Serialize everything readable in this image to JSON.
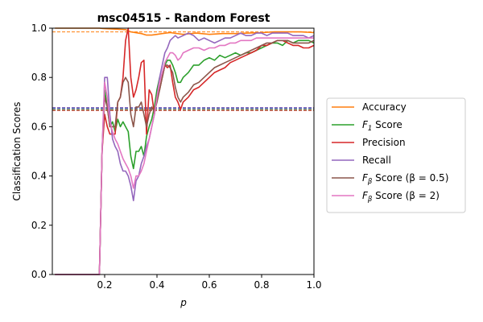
{
  "chart_data": {
    "type": "line",
    "title": "msc04515 - Random Forest",
    "xlabel": "p",
    "ylabel": "Classification Scores",
    "xlim": [
      0.0,
      1.0
    ],
    "ylim": [
      0.0,
      1.0
    ],
    "x_ticks": [
      "0.2",
      "0.4",
      "0.6",
      "0.8",
      "1.0"
    ],
    "y_ticks": [
      "0.0",
      "0.2",
      "0.4",
      "0.6",
      "0.8",
      "1.0"
    ],
    "grid": false,
    "legend_position": "right-outside",
    "colors": {
      "accuracy": "#ff7f0e",
      "f1": "#2ca02c",
      "precision": "#d62728",
      "recall": "#9467bd",
      "f05": "#8c564b",
      "f2": "#e377c2",
      "baseline_blue": "#1f77b4"
    },
    "reference_lines": [
      {
        "series": "accuracy",
        "y": 0.985,
        "style": "dashed"
      },
      {
        "series": "recall",
        "y": 0.678,
        "style": "dashed"
      },
      {
        "series": "baseline_blue",
        "y": 0.675,
        "style": "dashed"
      },
      {
        "series": "f2",
        "y": 0.672,
        "style": "dashed"
      },
      {
        "series": "f1",
        "y": 0.669,
        "style": "dashed"
      },
      {
        "series": "precision",
        "y": 0.666,
        "style": "dashed"
      }
    ],
    "series": [
      {
        "key": "accuracy",
        "name": "Accuracy",
        "x": [
          0.01,
          0.1,
          0.18,
          0.2,
          0.24,
          0.28,
          0.3,
          0.34,
          0.36,
          0.38,
          0.4,
          0.42,
          0.45,
          0.5,
          0.55,
          0.6,
          0.65,
          0.7,
          0.75,
          0.8,
          0.85,
          0.9,
          0.95,
          1.0
        ],
        "y": [
          1.0,
          1.0,
          1.0,
          0.998,
          0.996,
          0.994,
          0.985,
          0.978,
          0.972,
          0.972,
          0.975,
          0.978,
          0.982,
          0.975,
          0.98,
          0.975,
          0.978,
          0.978,
          0.98,
          0.982,
          0.985,
          0.985,
          0.985,
          0.982
        ]
      },
      {
        "key": "f1",
        "name": "F1 Score",
        "x": [
          0.01,
          0.17,
          0.18,
          0.19,
          0.2,
          0.21,
          0.22,
          0.23,
          0.24,
          0.25,
          0.26,
          0.27,
          0.28,
          0.29,
          0.3,
          0.31,
          0.32,
          0.33,
          0.34,
          0.35,
          0.36,
          0.37,
          0.38,
          0.39,
          0.4,
          0.41,
          0.42,
          0.43,
          0.44,
          0.45,
          0.46,
          0.47,
          0.48,
          0.49,
          0.5,
          0.52,
          0.54,
          0.56,
          0.58,
          0.6,
          0.62,
          0.64,
          0.66,
          0.68,
          0.7,
          0.72,
          0.74,
          0.76,
          0.78,
          0.8,
          0.82,
          0.84,
          0.86,
          0.88,
          0.9,
          0.92,
          0.94,
          0.96,
          0.98,
          1.0
        ],
        "y": [
          0.0,
          0.0,
          0.0,
          0.5,
          0.75,
          0.68,
          0.6,
          0.62,
          0.58,
          0.63,
          0.6,
          0.62,
          0.6,
          0.58,
          0.48,
          0.43,
          0.5,
          0.5,
          0.52,
          0.48,
          0.56,
          0.6,
          0.63,
          0.68,
          0.75,
          0.8,
          0.8,
          0.85,
          0.87,
          0.87,
          0.85,
          0.82,
          0.78,
          0.78,
          0.8,
          0.82,
          0.85,
          0.85,
          0.87,
          0.88,
          0.87,
          0.89,
          0.88,
          0.89,
          0.9,
          0.89,
          0.9,
          0.9,
          0.91,
          0.92,
          0.93,
          0.94,
          0.94,
          0.93,
          0.95,
          0.94,
          0.95,
          0.95,
          0.95,
          0.94
        ]
      },
      {
        "key": "precision",
        "name": "Precision",
        "x": [
          0.01,
          0.17,
          0.18,
          0.19,
          0.2,
          0.21,
          0.22,
          0.23,
          0.24,
          0.25,
          0.26,
          0.27,
          0.28,
          0.29,
          0.3,
          0.31,
          0.32,
          0.33,
          0.34,
          0.35,
          0.36,
          0.37,
          0.38,
          0.39,
          0.4,
          0.41,
          0.42,
          0.43,
          0.44,
          0.45,
          0.46,
          0.47,
          0.48,
          0.49,
          0.5,
          0.52,
          0.54,
          0.56,
          0.58,
          0.6,
          0.62,
          0.64,
          0.66,
          0.68,
          0.7,
          0.72,
          0.74,
          0.76,
          0.78,
          0.8,
          0.82,
          0.84,
          0.86,
          0.88,
          0.9,
          0.92,
          0.94,
          0.96,
          0.98,
          1.0
        ],
        "y": [
          0.0,
          0.0,
          0.0,
          0.5,
          0.65,
          0.6,
          0.57,
          0.57,
          0.57,
          0.7,
          0.72,
          0.8,
          0.95,
          1.0,
          0.8,
          0.72,
          0.75,
          0.8,
          0.86,
          0.87,
          0.57,
          0.75,
          0.73,
          0.65,
          0.72,
          0.75,
          0.8,
          0.85,
          0.84,
          0.85,
          0.78,
          0.72,
          0.7,
          0.67,
          0.7,
          0.72,
          0.75,
          0.76,
          0.78,
          0.8,
          0.82,
          0.83,
          0.84,
          0.86,
          0.87,
          0.88,
          0.89,
          0.9,
          0.91,
          0.93,
          0.93,
          0.94,
          0.95,
          0.95,
          0.94,
          0.93,
          0.93,
          0.92,
          0.92,
          0.93
        ]
      },
      {
        "key": "recall",
        "name": "Recall",
        "x": [
          0.01,
          0.17,
          0.18,
          0.19,
          0.2,
          0.21,
          0.22,
          0.23,
          0.24,
          0.25,
          0.26,
          0.27,
          0.28,
          0.29,
          0.3,
          0.31,
          0.32,
          0.33,
          0.34,
          0.35,
          0.36,
          0.37,
          0.38,
          0.39,
          0.4,
          0.41,
          0.42,
          0.43,
          0.44,
          0.45,
          0.46,
          0.47,
          0.48,
          0.5,
          0.52,
          0.54,
          0.56,
          0.58,
          0.6,
          0.62,
          0.64,
          0.66,
          0.68,
          0.7,
          0.72,
          0.74,
          0.76,
          0.78,
          0.8,
          0.82,
          0.84,
          0.86,
          0.88,
          0.9,
          0.92,
          0.94,
          0.96,
          0.98,
          1.0
        ],
        "y": [
          0.0,
          0.0,
          0.0,
          0.5,
          0.8,
          0.8,
          0.65,
          0.55,
          0.52,
          0.5,
          0.45,
          0.42,
          0.42,
          0.4,
          0.36,
          0.3,
          0.38,
          0.4,
          0.45,
          0.48,
          0.52,
          0.55,
          0.6,
          0.65,
          0.72,
          0.8,
          0.85,
          0.9,
          0.92,
          0.95,
          0.96,
          0.97,
          0.96,
          0.97,
          0.98,
          0.97,
          0.95,
          0.96,
          0.95,
          0.94,
          0.95,
          0.96,
          0.96,
          0.97,
          0.98,
          0.97,
          0.97,
          0.98,
          0.98,
          0.97,
          0.98,
          0.98,
          0.98,
          0.98,
          0.97,
          0.97,
          0.97,
          0.96,
          0.97
        ]
      },
      {
        "key": "f05",
        "name": "Fβ Score (β = 0.5)",
        "x": [
          0.01,
          0.17,
          0.18,
          0.19,
          0.2,
          0.21,
          0.22,
          0.23,
          0.24,
          0.25,
          0.26,
          0.27,
          0.28,
          0.29,
          0.3,
          0.31,
          0.32,
          0.33,
          0.34,
          0.35,
          0.36,
          0.37,
          0.38,
          0.39,
          0.4,
          0.41,
          0.42,
          0.43,
          0.44,
          0.45,
          0.46,
          0.47,
          0.48,
          0.49,
          0.5,
          0.52,
          0.54,
          0.56,
          0.58,
          0.6,
          0.62,
          0.64,
          0.66,
          0.68,
          0.7,
          0.72,
          0.74,
          0.76,
          0.78,
          0.8,
          0.82,
          0.84,
          0.86,
          0.88,
          0.9,
          0.92,
          0.94,
          0.96,
          0.98,
          1.0
        ],
        "y": [
          0.0,
          0.0,
          0.0,
          0.5,
          0.72,
          0.68,
          0.6,
          0.6,
          0.6,
          0.7,
          0.72,
          0.78,
          0.8,
          0.78,
          0.65,
          0.6,
          0.68,
          0.68,
          0.7,
          0.65,
          0.6,
          0.65,
          0.68,
          0.66,
          0.7,
          0.75,
          0.8,
          0.85,
          0.85,
          0.84,
          0.82,
          0.76,
          0.72,
          0.7,
          0.72,
          0.74,
          0.77,
          0.78,
          0.8,
          0.82,
          0.84,
          0.85,
          0.86,
          0.87,
          0.88,
          0.89,
          0.9,
          0.91,
          0.92,
          0.93,
          0.94,
          0.94,
          0.95,
          0.95,
          0.95,
          0.94,
          0.94,
          0.94,
          0.94,
          0.95
        ]
      },
      {
        "key": "f2",
        "name": "Fβ Score (β = 2)",
        "x": [
          0.01,
          0.17,
          0.18,
          0.19,
          0.2,
          0.21,
          0.22,
          0.23,
          0.24,
          0.25,
          0.26,
          0.27,
          0.28,
          0.29,
          0.3,
          0.31,
          0.32,
          0.33,
          0.34,
          0.35,
          0.36,
          0.37,
          0.38,
          0.39,
          0.4,
          0.41,
          0.42,
          0.43,
          0.44,
          0.45,
          0.46,
          0.47,
          0.48,
          0.49,
          0.5,
          0.52,
          0.54,
          0.56,
          0.58,
          0.6,
          0.62,
          0.64,
          0.66,
          0.68,
          0.7,
          0.72,
          0.74,
          0.76,
          0.78,
          0.8,
          0.82,
          0.84,
          0.86,
          0.88,
          0.9,
          0.92,
          0.94,
          0.96,
          0.98,
          1.0
        ],
        "y": [
          0.0,
          0.0,
          0.0,
          0.5,
          0.78,
          0.72,
          0.62,
          0.58,
          0.55,
          0.53,
          0.5,
          0.47,
          0.45,
          0.43,
          0.4,
          0.35,
          0.4,
          0.4,
          0.42,
          0.45,
          0.5,
          0.55,
          0.6,
          0.65,
          0.72,
          0.78,
          0.82,
          0.86,
          0.88,
          0.9,
          0.9,
          0.89,
          0.87,
          0.88,
          0.9,
          0.91,
          0.92,
          0.92,
          0.91,
          0.92,
          0.92,
          0.93,
          0.93,
          0.94,
          0.94,
          0.95,
          0.95,
          0.95,
          0.96,
          0.96,
          0.96,
          0.96,
          0.96,
          0.96,
          0.96,
          0.96,
          0.96,
          0.96,
          0.96,
          0.96
        ]
      }
    ],
    "legend": [
      {
        "key": "accuracy",
        "label": "Accuracy"
      },
      {
        "key": "f1",
        "label_main": "F",
        "label_sub": "1",
        "label_rest": " Score"
      },
      {
        "key": "precision",
        "label": "Precision"
      },
      {
        "key": "recall",
        "label": "Recall"
      },
      {
        "key": "f05",
        "label_main": "F",
        "label_sub": "β",
        "label_rest": " Score (β = 0.5)"
      },
      {
        "key": "f2",
        "label_main": "F",
        "label_sub": "β",
        "label_rest": " Score (β = 2)"
      }
    ]
  }
}
